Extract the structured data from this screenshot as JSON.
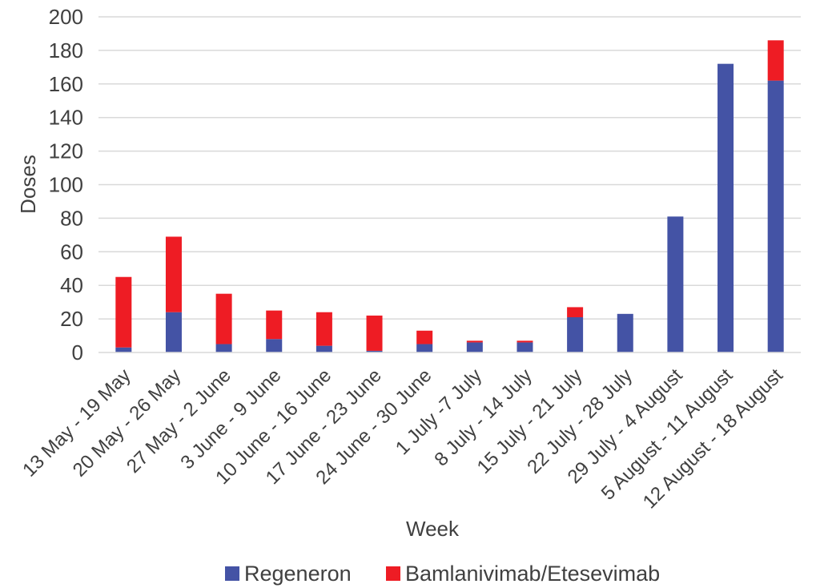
{
  "chart_data": {
    "type": "bar",
    "stacked": true,
    "xlabel": "Week",
    "ylabel": "Doses",
    "ylim": [
      0,
      200
    ],
    "yticks": [
      0,
      20,
      40,
      60,
      80,
      100,
      120,
      140,
      160,
      180,
      200
    ],
    "grid": true,
    "legend_position": "bottom",
    "categories": [
      "13 May - 19 May",
      "20 May - 26 May",
      "27 May - 2 June",
      "3 June - 9 June",
      "10 June - 16 June",
      "17 June - 23 June",
      "24 June - 30 June",
      "1 July -7 July",
      "8 July - 14 July",
      "15 July - 21 July",
      "22 July - 28 July",
      "29 July - 4 August",
      "5 August - 11 August",
      "12 August - 18 August"
    ],
    "series": [
      {
        "name": "Regeneron",
        "color": "#4453a5",
        "values": [
          3,
          24,
          5,
          8,
          4,
          1,
          5,
          6,
          6,
          21,
          23,
          81,
          172,
          162
        ]
      },
      {
        "name": "Bamlanivimab/Etesevimab",
        "color": "#ee1c24",
        "values": [
          42,
          45,
          30,
          17,
          20,
          21,
          8,
          1,
          1,
          6,
          0,
          0,
          0,
          24
        ]
      }
    ]
  }
}
